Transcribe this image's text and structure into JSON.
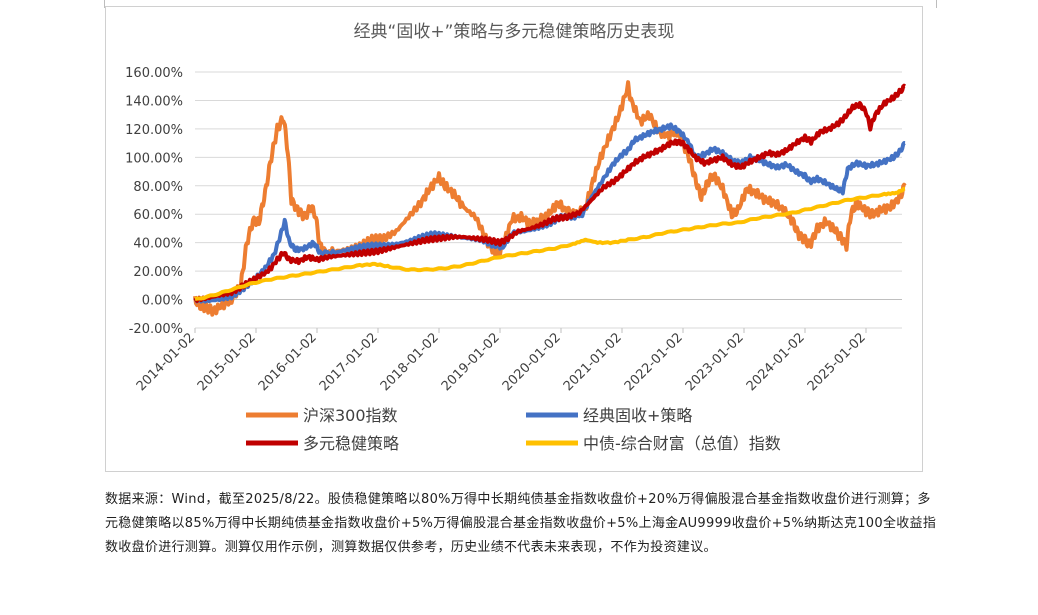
{
  "chart_data": {
    "type": "line",
    "title": "经典“固收+”策略与多元稳健策略历史表现",
    "xlabel": "",
    "ylabel": "",
    "ylim": [
      -20,
      160
    ],
    "yticks": [
      "160.00%",
      "140.00%",
      "120.00%",
      "100.00%",
      "80.00%",
      "60.00%",
      "40.00%",
      "20.00%",
      "0.00%",
      "-20.00%"
    ],
    "ytick_values": [
      160,
      140,
      120,
      100,
      80,
      60,
      40,
      20,
      0,
      -20
    ],
    "xlim": [
      2014.0,
      2025.64
    ],
    "xticks": [
      "2014-01-02",
      "2015-01-02",
      "2016-01-02",
      "2017-01-02",
      "2018-01-02",
      "2019-01-02",
      "2020-01-02",
      "2021-01-02",
      "2022-01-02",
      "2023-01-02",
      "2024-01-02",
      "2025-01-02"
    ],
    "xtick_values": [
      2014,
      2015,
      2016,
      2017,
      2018,
      2019,
      2020,
      2021,
      2022,
      2023,
      2024,
      2025
    ],
    "grid": true,
    "legend_position": "bottom",
    "series": [
      {
        "name": "沪深300指数",
        "color": "#ED7D31",
        "points": [
          [
            2014.0,
            0
          ],
          [
            2014.1,
            -5
          ],
          [
            2014.2,
            -6
          ],
          [
            2014.3,
            -8
          ],
          [
            2014.45,
            -4
          ],
          [
            2014.6,
            0
          ],
          [
            2014.75,
            10
          ],
          [
            2014.85,
            40
          ],
          [
            2014.95,
            55
          ],
          [
            2015.05,
            55
          ],
          [
            2015.15,
            75
          ],
          [
            2015.25,
            100
          ],
          [
            2015.35,
            120
          ],
          [
            2015.45,
            128
          ],
          [
            2015.52,
            105
          ],
          [
            2015.58,
            70
          ],
          [
            2015.7,
            62
          ],
          [
            2015.8,
            58
          ],
          [
            2015.9,
            65
          ],
          [
            2015.97,
            60
          ],
          [
            2016.05,
            38
          ],
          [
            2016.15,
            32
          ],
          [
            2016.3,
            34
          ],
          [
            2016.5,
            35
          ],
          [
            2016.7,
            37
          ],
          [
            2016.9,
            42
          ],
          [
            2017.1,
            43
          ],
          [
            2017.3,
            48
          ],
          [
            2017.5,
            58
          ],
          [
            2017.7,
            68
          ],
          [
            2017.85,
            78
          ],
          [
            2018.0,
            86
          ],
          [
            2018.1,
            80
          ],
          [
            2018.25,
            74
          ],
          [
            2018.4,
            65
          ],
          [
            2018.6,
            58
          ],
          [
            2018.8,
            40
          ],
          [
            2018.95,
            31
          ],
          [
            2019.05,
            38
          ],
          [
            2019.2,
            57
          ],
          [
            2019.35,
            58
          ],
          [
            2019.5,
            53
          ],
          [
            2019.65,
            56
          ],
          [
            2019.8,
            60
          ],
          [
            2019.95,
            68
          ],
          [
            2020.1,
            62
          ],
          [
            2020.25,
            60
          ],
          [
            2020.4,
            64
          ],
          [
            2020.5,
            80
          ],
          [
            2020.65,
            100
          ],
          [
            2020.8,
            115
          ],
          [
            2020.95,
            130
          ],
          [
            2021.1,
            150
          ],
          [
            2021.15,
            140
          ],
          [
            2021.3,
            125
          ],
          [
            2021.45,
            130
          ],
          [
            2021.6,
            118
          ],
          [
            2021.75,
            115
          ],
          [
            2021.9,
            118
          ],
          [
            2022.0,
            110
          ],
          [
            2022.1,
            100
          ],
          [
            2022.2,
            85
          ],
          [
            2022.3,
            72
          ],
          [
            2022.4,
            82
          ],
          [
            2022.5,
            88
          ],
          [
            2022.65,
            78
          ],
          [
            2022.8,
            60
          ],
          [
            2022.9,
            63
          ],
          [
            2023.05,
            78
          ],
          [
            2023.2,
            75
          ],
          [
            2023.35,
            70
          ],
          [
            2023.5,
            68
          ],
          [
            2023.65,
            63
          ],
          [
            2023.8,
            55
          ],
          [
            2023.9,
            45
          ],
          [
            2024.0,
            42
          ],
          [
            2024.08,
            38
          ],
          [
            2024.2,
            50
          ],
          [
            2024.35,
            55
          ],
          [
            2024.5,
            48
          ],
          [
            2024.6,
            43
          ],
          [
            2024.68,
            38
          ],
          [
            2024.75,
            60
          ],
          [
            2024.85,
            68
          ],
          [
            2025.0,
            62
          ],
          [
            2025.1,
            60
          ],
          [
            2025.25,
            63
          ],
          [
            2025.4,
            65
          ],
          [
            2025.55,
            72
          ],
          [
            2025.64,
            80
          ]
        ]
      },
      {
        "name": "经典固收+策略",
        "color": "#4472C4",
        "points": [
          [
            2014.0,
            0
          ],
          [
            2014.2,
            -1
          ],
          [
            2014.4,
            0
          ],
          [
            2014.6,
            2
          ],
          [
            2014.8,
            8
          ],
          [
            2015.0,
            15
          ],
          [
            2015.15,
            22
          ],
          [
            2015.3,
            32
          ],
          [
            2015.4,
            45
          ],
          [
            2015.47,
            55
          ],
          [
            2015.55,
            40
          ],
          [
            2015.65,
            35
          ],
          [
            2015.8,
            36
          ],
          [
            2015.95,
            40
          ],
          [
            2016.05,
            33
          ],
          [
            2016.3,
            33
          ],
          [
            2016.5,
            35
          ],
          [
            2016.7,
            37
          ],
          [
            2016.9,
            38
          ],
          [
            2017.1,
            38
          ],
          [
            2017.3,
            39
          ],
          [
            2017.5,
            41
          ],
          [
            2017.7,
            44
          ],
          [
            2017.9,
            46
          ],
          [
            2018.1,
            45
          ],
          [
            2018.3,
            44
          ],
          [
            2018.5,
            43
          ],
          [
            2018.7,
            42
          ],
          [
            2018.9,
            38
          ],
          [
            2019.05,
            37
          ],
          [
            2019.2,
            47
          ],
          [
            2019.4,
            48
          ],
          [
            2019.6,
            50
          ],
          [
            2019.8,
            53
          ],
          [
            2020.0,
            58
          ],
          [
            2020.2,
            58
          ],
          [
            2020.35,
            60
          ],
          [
            2020.5,
            72
          ],
          [
            2020.7,
            85
          ],
          [
            2020.85,
            95
          ],
          [
            2021.0,
            102
          ],
          [
            2021.1,
            105
          ],
          [
            2021.2,
            112
          ],
          [
            2021.35,
            115
          ],
          [
            2021.5,
            118
          ],
          [
            2021.65,
            120
          ],
          [
            2021.8,
            122
          ],
          [
            2021.95,
            118
          ],
          [
            2022.1,
            110
          ],
          [
            2022.2,
            100
          ],
          [
            2022.35,
            102
          ],
          [
            2022.5,
            106
          ],
          [
            2022.65,
            103
          ],
          [
            2022.8,
            98
          ],
          [
            2022.95,
            96
          ],
          [
            2023.1,
            100
          ],
          [
            2023.25,
            98
          ],
          [
            2023.4,
            95
          ],
          [
            2023.55,
            93
          ],
          [
            2023.7,
            95
          ],
          [
            2023.85,
            90
          ],
          [
            2024.0,
            87
          ],
          [
            2024.08,
            83
          ],
          [
            2024.2,
            85
          ],
          [
            2024.35,
            82
          ],
          [
            2024.5,
            78
          ],
          [
            2024.62,
            76
          ],
          [
            2024.7,
            92
          ],
          [
            2024.85,
            96
          ],
          [
            2025.0,
            94
          ],
          [
            2025.15,
            95
          ],
          [
            2025.3,
            97
          ],
          [
            2025.45,
            100
          ],
          [
            2025.55,
            104
          ],
          [
            2025.64,
            110
          ]
        ]
      },
      {
        "name": "多元稳健策略",
        "color": "#C00000",
        "points": [
          [
            2014.0,
            0
          ],
          [
            2014.2,
            1
          ],
          [
            2014.4,
            3
          ],
          [
            2014.6,
            5
          ],
          [
            2014.8,
            10
          ],
          [
            2015.0,
            15
          ],
          [
            2015.2,
            20
          ],
          [
            2015.35,
            28
          ],
          [
            2015.45,
            33
          ],
          [
            2015.55,
            28
          ],
          [
            2015.7,
            27
          ],
          [
            2015.85,
            30
          ],
          [
            2016.0,
            28
          ],
          [
            2016.2,
            30
          ],
          [
            2016.4,
            31
          ],
          [
            2016.6,
            32
          ],
          [
            2016.8,
            33
          ],
          [
            2017.0,
            34
          ],
          [
            2017.2,
            36
          ],
          [
            2017.4,
            38
          ],
          [
            2017.6,
            40
          ],
          [
            2017.8,
            42
          ],
          [
            2018.0,
            43
          ],
          [
            2018.2,
            44
          ],
          [
            2018.4,
            44
          ],
          [
            2018.6,
            43
          ],
          [
            2018.8,
            42
          ],
          [
            2019.0,
            40
          ],
          [
            2019.1,
            42
          ],
          [
            2019.3,
            48
          ],
          [
            2019.5,
            50
          ],
          [
            2019.7,
            53
          ],
          [
            2019.9,
            57
          ],
          [
            2020.1,
            58
          ],
          [
            2020.3,
            61
          ],
          [
            2020.5,
            70
          ],
          [
            2020.7,
            79
          ],
          [
            2020.9,
            84
          ],
          [
            2021.05,
            90
          ],
          [
            2021.2,
            96
          ],
          [
            2021.35,
            100
          ],
          [
            2021.5,
            103
          ],
          [
            2021.65,
            106
          ],
          [
            2021.8,
            110
          ],
          [
            2021.95,
            111
          ],
          [
            2022.05,
            108
          ],
          [
            2022.2,
            100
          ],
          [
            2022.35,
            96
          ],
          [
            2022.5,
            98
          ],
          [
            2022.65,
            100
          ],
          [
            2022.8,
            95
          ],
          [
            2022.95,
            93
          ],
          [
            2023.1,
            97
          ],
          [
            2023.25,
            100
          ],
          [
            2023.4,
            103
          ],
          [
            2023.55,
            102
          ],
          [
            2023.7,
            105
          ],
          [
            2023.85,
            110
          ],
          [
            2024.0,
            114
          ],
          [
            2024.1,
            111
          ],
          [
            2024.25,
            118
          ],
          [
            2024.4,
            120
          ],
          [
            2024.55,
            124
          ],
          [
            2024.65,
            128
          ],
          [
            2024.78,
            135
          ],
          [
            2024.9,
            137
          ],
          [
            2025.0,
            132
          ],
          [
            2025.07,
            121
          ],
          [
            2025.15,
            130
          ],
          [
            2025.3,
            138
          ],
          [
            2025.45,
            142
          ],
          [
            2025.55,
            146
          ],
          [
            2025.64,
            150
          ]
        ]
      },
      {
        "name": "中债-综合财富（总值）指数",
        "color": "#FFC000",
        "points": [
          [
            2014.0,
            0
          ],
          [
            2014.3,
            3
          ],
          [
            2014.6,
            7
          ],
          [
            2014.9,
            11
          ],
          [
            2015.2,
            14
          ],
          [
            2015.5,
            16
          ],
          [
            2015.8,
            18
          ],
          [
            2016.1,
            20
          ],
          [
            2016.4,
            22
          ],
          [
            2016.7,
            24
          ],
          [
            2016.95,
            25
          ],
          [
            2017.2,
            23
          ],
          [
            2017.5,
            21
          ],
          [
            2017.8,
            21
          ],
          [
            2018.1,
            22
          ],
          [
            2018.4,
            24
          ],
          [
            2018.7,
            27
          ],
          [
            2019.0,
            30
          ],
          [
            2019.3,
            32
          ],
          [
            2019.6,
            34
          ],
          [
            2019.9,
            36
          ],
          [
            2020.2,
            39
          ],
          [
            2020.4,
            42
          ],
          [
            2020.6,
            40
          ],
          [
            2020.85,
            40
          ],
          [
            2021.1,
            42
          ],
          [
            2021.4,
            44
          ],
          [
            2021.7,
            47
          ],
          [
            2022.0,
            49
          ],
          [
            2022.3,
            51
          ],
          [
            2022.6,
            53
          ],
          [
            2022.9,
            54
          ],
          [
            2023.2,
            57
          ],
          [
            2023.5,
            59
          ],
          [
            2023.8,
            61
          ],
          [
            2024.1,
            64
          ],
          [
            2024.4,
            67
          ],
          [
            2024.7,
            70
          ],
          [
            2025.0,
            72
          ],
          [
            2025.3,
            74
          ],
          [
            2025.5,
            75
          ],
          [
            2025.64,
            78
          ]
        ]
      }
    ]
  },
  "footnote": "数据来源：Wind，截至2025/8/22。股债稳健策略以80%万得中长期纯债基金指数收盘价+20%万得偏股混合基金指数收盘价进行测算；多元稳健策略以85%万得中长期纯债基金指数收盘价+5%万得偏股混合基金指数收盘价+5%上海金AU9999收盘价+5%纳斯达克100全收益指数收盘价进行测算。测算仅用作示例，测算数据仅供参考，历史业绩不代表未来表现，不作为投资建议。"
}
